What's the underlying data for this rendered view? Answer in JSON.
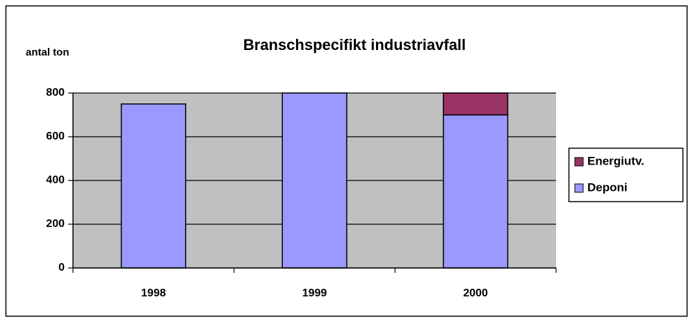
{
  "chart_data": {
    "type": "stacked_bar",
    "title": "Branschspecifikt industriavfall",
    "y_label": "antal ton",
    "categories": [
      "1998",
      "1999",
      "2000"
    ],
    "series": [
      {
        "name": "Deponi",
        "color": "#9999ff",
        "values": [
          750,
          800,
          700
        ]
      },
      {
        "name": "Energiutv.",
        "color": "#993366",
        "values": [
          null,
          null,
          100
        ]
      }
    ],
    "ylim": [
      0,
      800
    ],
    "yticks": [
      0,
      200,
      400,
      600,
      800
    ],
    "grid": true,
    "legend": "right",
    "plot_background": "#c0c0c0"
  }
}
